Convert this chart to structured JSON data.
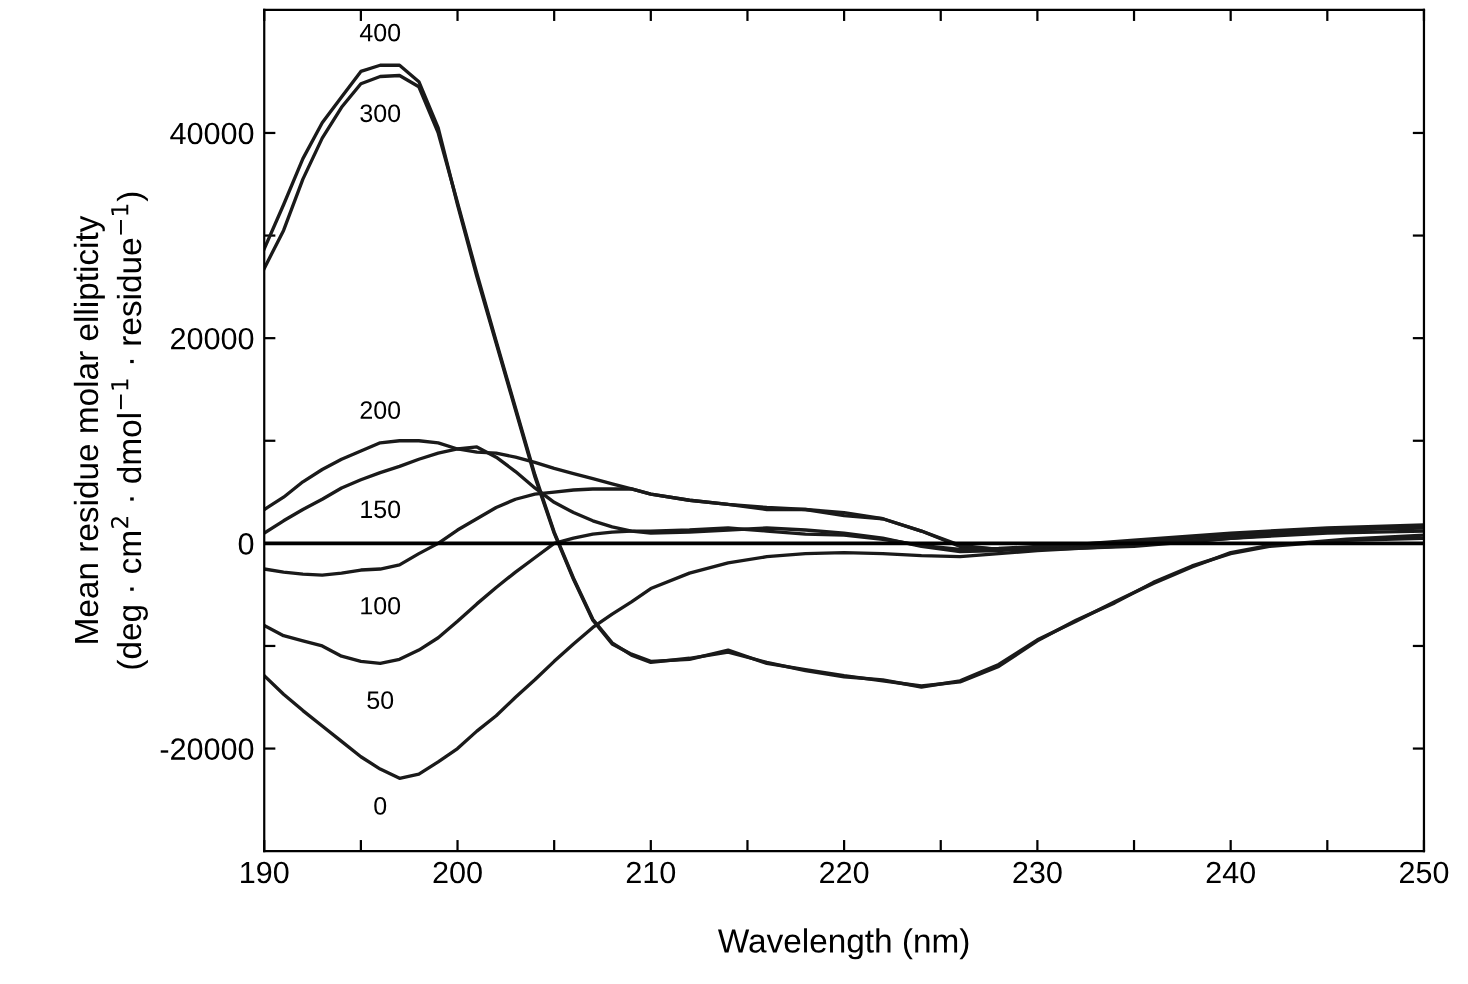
{
  "chart_data": {
    "type": "line",
    "xlabel": "Wavelength (nm)",
    "ylabel": "Mean residue molar ellipticity\n(deg · cm$^{2}$ · dmol$^{−1}$ · residue$^{−1}$)",
    "xlim": [
      190,
      250
    ],
    "ylim": [
      -30000,
      52000
    ],
    "xticks": [
      190,
      {
        "value": 195,
        "label": null
      },
      200,
      {
        "value": 205,
        "label": null
      },
      210,
      {
        "value": 215,
        "label": null
      },
      220,
      {
        "value": 225,
        "label": null
      },
      230,
      {
        "value": 235,
        "label": null
      },
      240,
      {
        "value": 245,
        "label": null
      },
      250
    ],
    "yticks": [
      -20000,
      {
        "value": -10000,
        "label": null
      },
      0,
      {
        "value": 10000,
        "label": null
      },
      20000,
      {
        "value": 30000,
        "label": null
      },
      40000
    ],
    "grid": false,
    "legend": false,
    "marker": "none",
    "line_style": "solid",
    "ref_lines": [
      {
        "axis": "y",
        "value": 0,
        "color": "#000000"
      }
    ],
    "series": [
      {
        "name": "400",
        "color": "#1a1a1a",
        "x": [
          190,
          191,
          192,
          193,
          194,
          195,
          196,
          197,
          198,
          199,
          200,
          201,
          202,
          203,
          204,
          205,
          206,
          207,
          208,
          209,
          210,
          212,
          214,
          216,
          218,
          220,
          222,
          224,
          226,
          228,
          230,
          232,
          234,
          236,
          238,
          240,
          242,
          244,
          246,
          248,
          250
        ],
        "values": [
          28700,
          33000,
          37500,
          41000,
          43500,
          46000,
          46600,
          46600,
          45000,
          40500,
          33000,
          26000,
          19500,
          13000,
          6500,
          1000,
          -3500,
          -7500,
          -9800,
          -10800,
          -11500,
          -11300,
          -10400,
          -11700,
          -12300,
          -12900,
          -13400,
          -13900,
          -13500,
          -12000,
          -9500,
          -7500,
          -5800,
          -3800,
          -2200,
          -1000,
          -300,
          0,
          300,
          400,
          500
        ]
      },
      {
        "name": "300",
        "color": "#1a1a1a",
        "x": [
          190,
          191,
          192,
          193,
          194,
          195,
          196,
          197,
          198,
          199,
          200,
          201,
          202,
          203,
          204,
          205,
          206,
          207,
          208,
          209,
          210,
          212,
          214,
          216,
          218,
          220,
          222,
          224,
          226,
          228,
          230,
          232,
          234,
          236,
          238,
          240,
          242,
          244,
          246,
          248,
          250
        ],
        "values": [
          26800,
          30500,
          35500,
          39500,
          42500,
          44800,
          45500,
          45600,
          44500,
          40000,
          33200,
          26300,
          19700,
          13200,
          6700,
          1100,
          -3400,
          -7400,
          -9700,
          -10900,
          -11600,
          -11200,
          -10600,
          -11600,
          -12400,
          -13000,
          -13300,
          -14000,
          -13400,
          -11800,
          -9400,
          -7600,
          -5700,
          -3900,
          -2300,
          -900,
          -200,
          100,
          400,
          600,
          800
        ]
      },
      {
        "color": "#1a1a1a",
        "x": [
          190,
          191,
          192,
          193,
          194,
          195,
          196,
          197,
          198,
          199,
          200,
          201,
          202,
          203,
          204,
          205,
          206,
          207,
          208,
          209,
          210,
          212,
          214,
          216,
          218,
          220,
          222,
          224,
          226,
          228,
          230,
          235,
          240,
          245,
          250
        ],
        "name": "200",
        "values": [
          3300,
          4500,
          6000,
          7200,
          8200,
          9000,
          9800,
          10000,
          10000,
          9800,
          9200,
          8900,
          8800,
          8400,
          7900,
          7300,
          6800,
          6300,
          5800,
          5300,
          4800,
          4200,
          3800,
          3300,
          3300,
          2700,
          2400,
          1200,
          -300,
          -600,
          -500,
          0,
          800,
          1300,
          1600
        ]
      },
      {
        "color": "#1a1a1a",
        "x": [
          190,
          191,
          192,
          193,
          194,
          195,
          196,
          197,
          198,
          199,
          200,
          201,
          202,
          203,
          204,
          205,
          206,
          207,
          208,
          209,
          210,
          212,
          214,
          216,
          218,
          220,
          222,
          224,
          226,
          228,
          230,
          235,
          240,
          245,
          250
        ],
        "name": "150",
        "values": [
          1000,
          2200,
          3300,
          4300,
          5400,
          6200,
          6900,
          7500,
          8200,
          8800,
          9200,
          9400,
          8400,
          7000,
          5400,
          4000,
          3000,
          2200,
          1600,
          1200,
          1000,
          1100,
          1300,
          1500,
          1300,
          1000,
          500,
          -300,
          -800,
          -700,
          -400,
          300,
          1000,
          1500,
          1800
        ]
      },
      {
        "color": "#1a1a1a",
        "x": [
          190,
          191,
          192,
          193,
          194,
          195,
          196,
          197,
          198,
          199,
          200,
          201,
          202,
          203,
          204,
          205,
          206,
          207,
          208,
          209,
          210,
          212,
          214,
          216,
          218,
          220,
          222,
          224,
          226,
          228,
          230,
          235,
          240,
          245,
          250
        ],
        "name": "100",
        "values": [
          -2500,
          -2800,
          -3000,
          -3100,
          -2900,
          -2600,
          -2500,
          -2100,
          -1000,
          0,
          1300,
          2400,
          3500,
          4300,
          4800,
          5000,
          5200,
          5300,
          5300,
          5300,
          4800,
          4200,
          3800,
          3500,
          3300,
          3000,
          2400,
          1200,
          -200,
          -600,
          -600,
          -300,
          500,
          1200,
          1700
        ]
      },
      {
        "color": "#1a1a1a",
        "x": [
          190,
          191,
          192,
          193,
          194,
          195,
          196,
          197,
          198,
          199,
          200,
          201,
          202,
          203,
          204,
          205,
          206,
          207,
          208,
          209,
          210,
          212,
          214,
          216,
          218,
          220,
          222,
          224,
          226,
          228,
          230,
          235,
          240,
          245,
          250
        ],
        "name": "50",
        "values": [
          -8000,
          -9000,
          -9500,
          -10000,
          -11000,
          -11500,
          -11700,
          -11300,
          -10400,
          -9200,
          -7600,
          -5900,
          -4300,
          -2800,
          -1400,
          0,
          500,
          900,
          1100,
          1200,
          1200,
          1300,
          1500,
          1200,
          900,
          800,
          400,
          -200,
          -600,
          -500,
          -300,
          200,
          800,
          1300,
          1500
        ]
      },
      {
        "color": "#1a1a1a",
        "x": [
          190,
          191,
          192,
          193,
          194,
          195,
          196,
          197,
          198,
          199,
          200,
          201,
          202,
          203,
          204,
          205,
          206,
          207,
          208,
          209,
          210,
          212,
          214,
          216,
          218,
          220,
          222,
          224,
          226,
          228,
          230,
          235,
          240,
          245,
          250
        ],
        "name": "0",
        "values": [
          -12900,
          -14700,
          -16300,
          -17800,
          -19300,
          -20800,
          -22000,
          -22900,
          -22500,
          -21300,
          -20000,
          -18300,
          -16800,
          -15000,
          -13300,
          -11500,
          -9800,
          -8200,
          -6900,
          -5700,
          -4400,
          -2900,
          -1900,
          -1300,
          -1000,
          -900,
          -1000,
          -1200,
          -1300,
          -1000,
          -700,
          -200,
          500,
          1000,
          1200
        ]
      }
    ]
  }
}
